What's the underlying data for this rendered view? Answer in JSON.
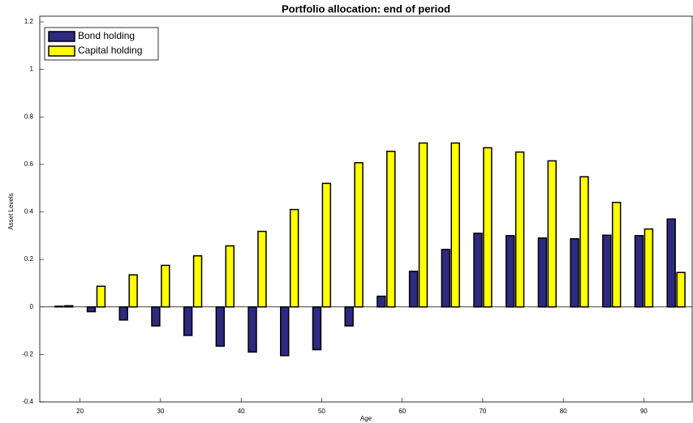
{
  "chart_data": {
    "type": "bar",
    "title": "Portfolio allocation: end of period",
    "x_label": "Age",
    "y_label": "Asset Levels",
    "x": [
      18,
      22,
      26,
      30,
      34,
      38,
      42,
      46,
      50,
      54,
      58,
      62,
      66,
      70,
      74,
      78,
      82,
      86,
      90,
      94
    ],
    "series": [
      {
        "name": "Bond holding",
        "color": "#2e2a80",
        "values": [
          0.003,
          -0.02,
          -0.055,
          -0.08,
          -0.12,
          -0.165,
          -0.19,
          -0.205,
          -0.18,
          -0.08,
          0.045,
          0.15,
          0.242,
          0.31,
          0.3,
          0.29,
          0.287,
          0.302,
          0.3,
          0.37
        ]
      },
      {
        "name": "Capital holding",
        "color": "#ffff00",
        "values": [
          0.005,
          0.087,
          0.135,
          0.175,
          0.215,
          0.257,
          0.318,
          0.41,
          0.52,
          0.607,
          0.655,
          0.69,
          0.69,
          0.67,
          0.652,
          0.615,
          0.548,
          0.44,
          0.328,
          0.145
        ]
      }
    ],
    "xlim": [
      15,
      96
    ],
    "xticks": [
      20,
      30,
      40,
      50,
      60,
      70,
      80,
      90
    ],
    "ylim": [
      -0.4,
      1.2
    ],
    "yticks": [
      -0.4,
      -0.2,
      0,
      0.2,
      0.4,
      0.6,
      0.8,
      1,
      1.2
    ],
    "legend": "top-left"
  }
}
